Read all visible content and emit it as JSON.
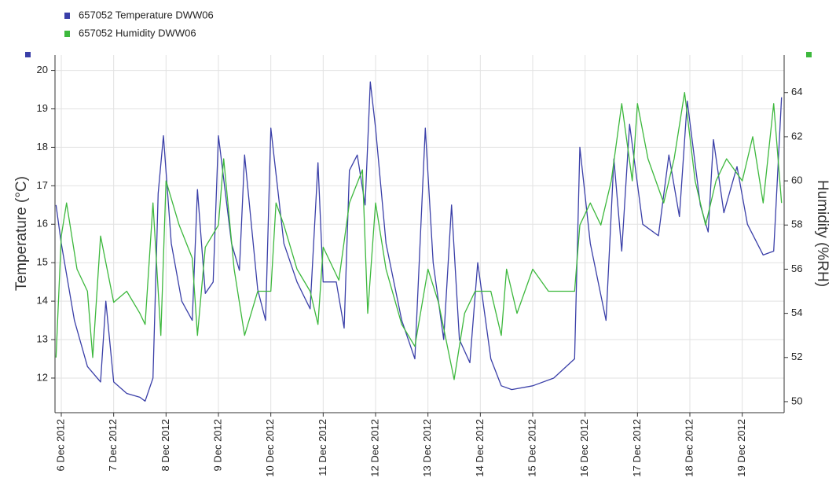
{
  "chart_data": {
    "type": "line",
    "y_label": "Temperature (°C)",
    "y2_label": "Humidity (%RH)",
    "xlim": [
      5.88,
      19.8
    ],
    "xticks": [
      {
        "value": 6,
        "label": "6 Dec 2012"
      },
      {
        "value": 7,
        "label": "7 Dec 2012"
      },
      {
        "value": 8,
        "label": "8 Dec 2012"
      },
      {
        "value": 9,
        "label": "9 Dec 2012"
      },
      {
        "value": 10,
        "label": "10 Dec 2012"
      },
      {
        "value": 11,
        "label": "11 Dec 2012"
      },
      {
        "value": 12,
        "label": "12 Dec 2012"
      },
      {
        "value": 13,
        "label": "13 Dec 2012"
      },
      {
        "value": 14,
        "label": "14 Dec 2012"
      },
      {
        "value": 15,
        "label": "15 Dec 2012"
      },
      {
        "value": 16,
        "label": "16 Dec 2012"
      },
      {
        "value": 17,
        "label": "17 Dec 2012"
      },
      {
        "value": 18,
        "label": "18 Dec 2012"
      },
      {
        "value": 19,
        "label": "19 Dec 2012"
      }
    ],
    "ylim": [
      11.1,
      20.4
    ],
    "yticks": [
      12,
      13,
      14,
      15,
      16,
      17,
      18,
      19,
      20
    ],
    "y2lim": [
      49.5,
      65.7
    ],
    "y2ticks": [
      50,
      52,
      54,
      56,
      58,
      60,
      62,
      64
    ],
    "grid": true,
    "series": [
      {
        "name": "657052  Temperature DWW06",
        "color": "#3a3fa8",
        "x": [
          5.9,
          6.0,
          6.25,
          6.5,
          6.75,
          6.85,
          7.0,
          7.25,
          7.5,
          7.6,
          7.75,
          7.85,
          7.95,
          8.1,
          8.3,
          8.5,
          8.6,
          8.75,
          8.9,
          9.0,
          9.25,
          9.4,
          9.5,
          9.75,
          9.9,
          10.0,
          10.25,
          10.5,
          10.75,
          10.9,
          11.0,
          11.25,
          11.4,
          11.5,
          11.65,
          11.8,
          11.9,
          12.0,
          12.2,
          12.5,
          12.75,
          12.95,
          13.1,
          13.3,
          13.45,
          13.6,
          13.8,
          13.95,
          14.2,
          14.4,
          14.6,
          15.0,
          15.4,
          15.8,
          15.9,
          16.1,
          16.4,
          16.55,
          16.7,
          16.85,
          17.1,
          17.4,
          17.6,
          17.8,
          17.95,
          18.2,
          18.35,
          18.45,
          18.65,
          18.9,
          19.1,
          19.4,
          19.6,
          19.75
        ],
        "values": [
          16.5,
          15.5,
          13.5,
          12.3,
          11.9,
          14.0,
          11.9,
          11.6,
          11.5,
          11.4,
          12.0,
          16.8,
          18.3,
          15.5,
          14.0,
          13.5,
          16.9,
          14.2,
          14.5,
          18.3,
          15.5,
          14.8,
          17.8,
          14.3,
          13.5,
          18.5,
          15.5,
          14.5,
          13.8,
          17.6,
          14.5,
          14.5,
          13.3,
          17.4,
          17.8,
          16.5,
          19.7,
          18.5,
          15.5,
          13.5,
          12.5,
          18.5,
          15.0,
          13.0,
          16.5,
          13.0,
          12.4,
          15.0,
          12.5,
          11.8,
          11.7,
          11.8,
          12.0,
          12.5,
          18.0,
          15.5,
          13.5,
          17.7,
          15.3,
          18.6,
          16.0,
          15.7,
          17.8,
          16.2,
          19.2,
          16.5,
          15.8,
          18.2,
          16.3,
          17.5,
          16.0,
          15.2,
          15.3,
          19.3
        ]
      },
      {
        "name": "657052  Humidity DWW06",
        "color": "#3db83d",
        "axis": "y2",
        "x": [
          5.9,
          6.0,
          6.1,
          6.3,
          6.5,
          6.6,
          6.75,
          7.0,
          7.25,
          7.5,
          7.6,
          7.75,
          7.9,
          8.0,
          8.25,
          8.5,
          8.6,
          8.75,
          9.0,
          9.1,
          9.3,
          9.5,
          9.75,
          10.0,
          10.1,
          10.25,
          10.5,
          10.75,
          10.9,
          11.0,
          11.3,
          11.5,
          11.75,
          11.85,
          12.0,
          12.2,
          12.5,
          12.75,
          13.0,
          13.2,
          13.5,
          13.7,
          13.9,
          14.2,
          14.4,
          14.5,
          14.7,
          15.0,
          15.3,
          15.5,
          15.8,
          15.9,
          16.1,
          16.3,
          16.5,
          16.7,
          16.9,
          17.0,
          17.2,
          17.5,
          17.7,
          17.9,
          18.1,
          18.3,
          18.5,
          18.7,
          19.0,
          19.2,
          19.4,
          19.6,
          19.75
        ],
        "values": [
          52,
          57.5,
          59,
          56,
          55,
          52,
          57.5,
          54.5,
          55,
          54,
          53.5,
          59,
          53,
          60,
          58,
          56.5,
          53,
          57,
          58,
          61,
          56,
          53,
          55,
          55,
          59,
          58,
          56,
          55,
          53.5,
          57,
          55.5,
          59,
          60.5,
          54,
          59,
          56,
          53.5,
          52.5,
          56,
          54.5,
          51,
          54,
          55,
          55,
          53,
          56,
          54,
          56,
          55,
          55,
          55,
          58,
          59,
          58,
          60,
          63.5,
          60,
          63.5,
          61,
          59,
          61,
          64,
          60,
          58,
          60,
          61,
          60,
          62,
          59,
          63.5,
          59
        ]
      }
    ]
  }
}
